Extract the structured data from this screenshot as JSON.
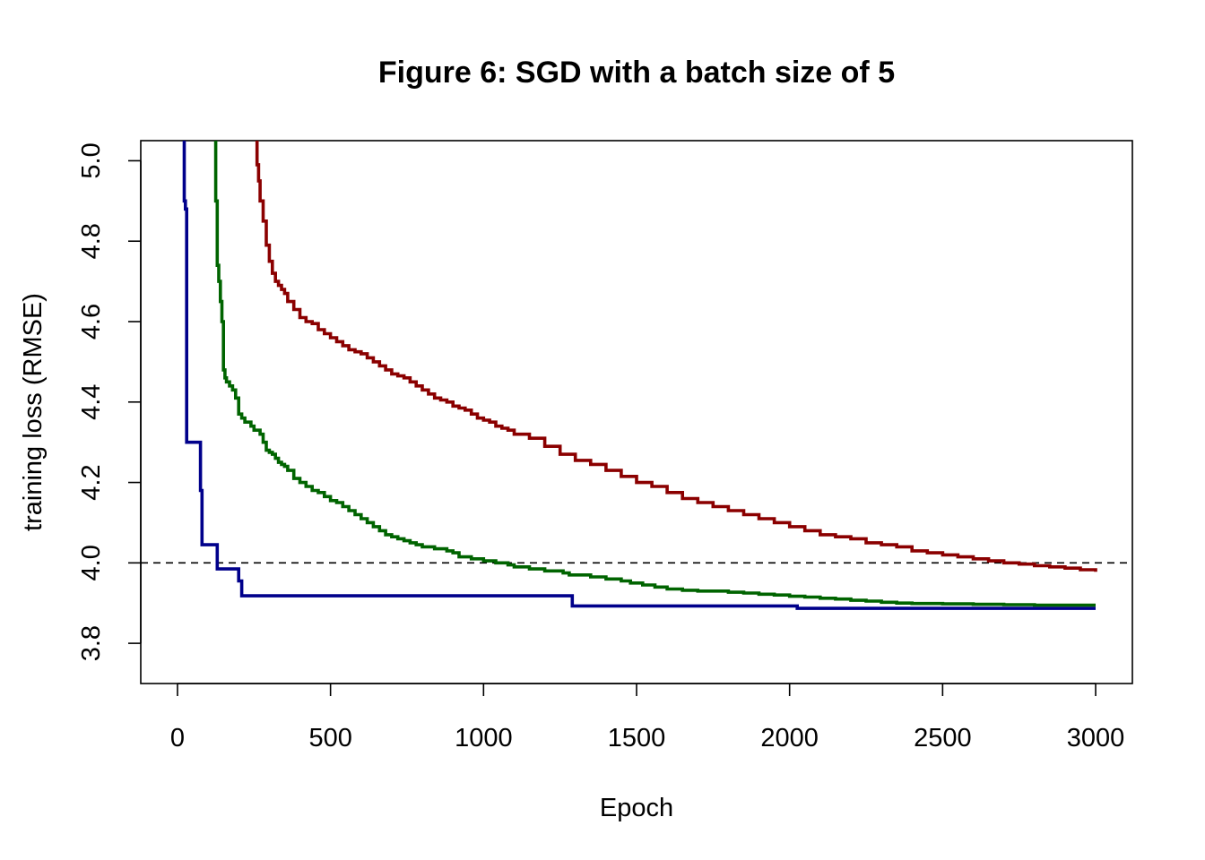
{
  "chart_data": {
    "type": "line",
    "title": "Figure 6: SGD with a batch size of 5",
    "xlabel": "Epoch",
    "ylabel": "training loss (RMSE)",
    "xlim": [
      -120,
      3120
    ],
    "ylim": [
      3.7,
      5.05
    ],
    "xticks": [
      0,
      500,
      1000,
      1500,
      2000,
      2500,
      3000
    ],
    "yticks": [
      3.8,
      4.0,
      4.2,
      4.4,
      4.6,
      4.8,
      5.0
    ],
    "xtick_labels": [
      "0",
      "500",
      "1000",
      "1500",
      "2000",
      "2500",
      "3000"
    ],
    "ytick_labels": [
      "3.8",
      "4.0",
      "4.2",
      "4.4",
      "4.6",
      "4.8",
      "5.0"
    ],
    "reference_line": {
      "y": 4.0,
      "style": "dashed",
      "color": "#000000"
    },
    "grid": false,
    "legend": "none",
    "series": [
      {
        "color": "#00008B",
        "x": [
          20,
          22,
          26,
          30,
          70,
          75,
          80,
          125,
          130,
          190,
          200,
          210,
          1285,
          1290,
          2020,
          2025,
          3000
        ],
        "y": [
          5.06,
          4.9,
          4.88,
          4.3,
          4.3,
          4.18,
          4.045,
          4.045,
          3.985,
          3.985,
          3.955,
          3.918,
          3.918,
          3.893,
          3.893,
          3.887,
          3.887
        ]
      },
      {
        "color": "#006400",
        "x": [
          120,
          125,
          130,
          135,
          140,
          145,
          150,
          155,
          160,
          170,
          180,
          190,
          200,
          210,
          220,
          240,
          250,
          270,
          280,
          290,
          300,
          310,
          320,
          330,
          340,
          350,
          360,
          380,
          400,
          420,
          440,
          460,
          480,
          500,
          520,
          540,
          560,
          580,
          600,
          620,
          640,
          660,
          680,
          700,
          720,
          740,
          760,
          780,
          800,
          840,
          880,
          900,
          920,
          960,
          1000,
          1040,
          1080,
          1100,
          1150,
          1200,
          1260,
          1280,
          1350,
          1400,
          1450,
          1480,
          1520,
          1560,
          1600,
          1650,
          1700,
          1800,
          1850,
          1900,
          1950,
          2000,
          2050,
          2100,
          2150,
          2200,
          2250,
          2300,
          2350,
          2400,
          2500,
          2600,
          2700,
          2800,
          2900,
          3000
        ],
        "y": [
          5.05,
          4.9,
          4.74,
          4.7,
          4.65,
          4.6,
          4.48,
          4.46,
          4.45,
          4.44,
          4.43,
          4.41,
          4.37,
          4.36,
          4.35,
          4.34,
          4.33,
          4.32,
          4.3,
          4.28,
          4.275,
          4.27,
          4.26,
          4.25,
          4.245,
          4.24,
          4.23,
          4.21,
          4.2,
          4.19,
          4.18,
          4.175,
          4.165,
          4.155,
          4.15,
          4.14,
          4.13,
          4.12,
          4.11,
          4.1,
          4.09,
          4.08,
          4.07,
          4.065,
          4.06,
          4.055,
          4.05,
          4.045,
          4.04,
          4.035,
          4.03,
          4.025,
          4.015,
          4.01,
          4.005,
          4.0,
          3.995,
          3.99,
          3.985,
          3.98,
          3.975,
          3.97,
          3.965,
          3.96,
          3.955,
          3.95,
          3.945,
          3.94,
          3.935,
          3.932,
          3.93,
          3.927,
          3.925,
          3.922,
          3.92,
          3.917,
          3.915,
          3.912,
          3.91,
          3.907,
          3.905,
          3.902,
          3.9,
          3.899,
          3.898,
          3.897,
          3.896,
          3.895,
          3.895,
          3.895
        ]
      },
      {
        "color": "#8B0000",
        "x": [
          255,
          260,
          265,
          270,
          280,
          290,
          300,
          310,
          320,
          330,
          340,
          350,
          360,
          380,
          400,
          420,
          440,
          460,
          480,
          500,
          520,
          540,
          560,
          580,
          600,
          620,
          640,
          660,
          680,
          700,
          720,
          740,
          760,
          780,
          800,
          820,
          840,
          860,
          880,
          900,
          920,
          940,
          960,
          980,
          1000,
          1020,
          1040,
          1060,
          1080,
          1100,
          1150,
          1200,
          1250,
          1300,
          1350,
          1400,
          1450,
          1500,
          1550,
          1600,
          1650,
          1700,
          1750,
          1800,
          1850,
          1900,
          1950,
          2000,
          2050,
          2100,
          2150,
          2200,
          2250,
          2300,
          2350,
          2400,
          2450,
          2500,
          2550,
          2600,
          2650,
          2700,
          2750,
          2800,
          2850,
          2900,
          2950,
          3000
        ],
        "y": [
          5.05,
          4.99,
          4.95,
          4.9,
          4.85,
          4.79,
          4.75,
          4.72,
          4.7,
          4.69,
          4.68,
          4.67,
          4.65,
          4.63,
          4.61,
          4.6,
          4.595,
          4.58,
          4.57,
          4.56,
          4.55,
          4.54,
          4.53,
          4.525,
          4.52,
          4.51,
          4.5,
          4.49,
          4.48,
          4.47,
          4.465,
          4.46,
          4.45,
          4.44,
          4.43,
          4.42,
          4.41,
          4.405,
          4.4,
          4.39,
          4.385,
          4.38,
          4.37,
          4.36,
          4.355,
          4.35,
          4.34,
          4.335,
          4.33,
          4.32,
          4.31,
          4.29,
          4.27,
          4.255,
          4.245,
          4.23,
          4.215,
          4.2,
          4.19,
          4.175,
          4.16,
          4.15,
          4.14,
          4.13,
          4.12,
          4.11,
          4.1,
          4.09,
          4.08,
          4.07,
          4.065,
          4.06,
          4.05,
          4.045,
          4.04,
          4.03,
          4.025,
          4.02,
          4.015,
          4.01,
          4.005,
          4.0,
          3.997,
          3.993,
          3.99,
          3.987,
          3.983,
          3.978
        ]
      }
    ]
  }
}
